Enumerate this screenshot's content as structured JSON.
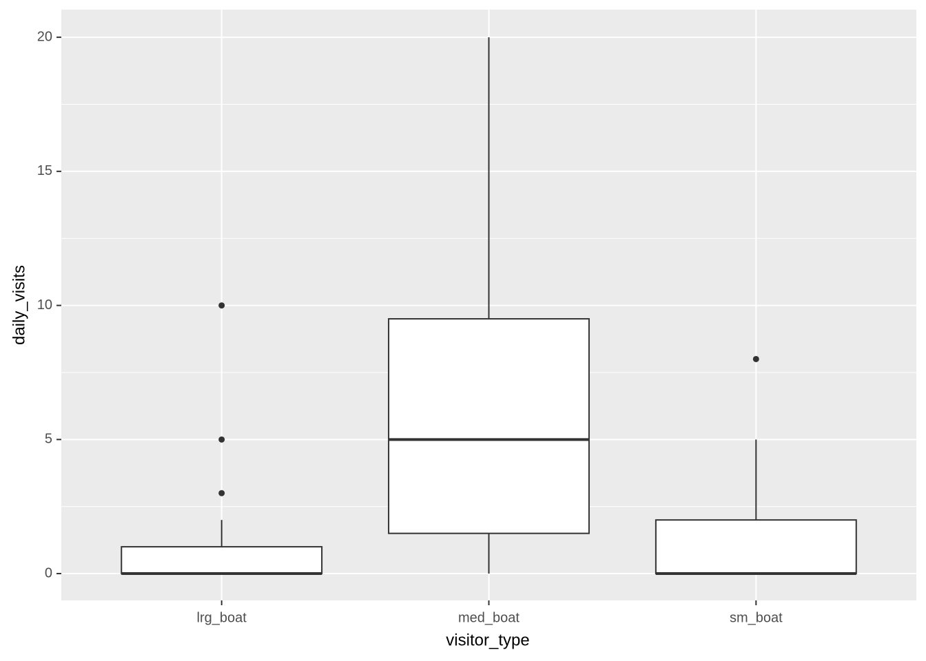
{
  "chart_data": {
    "type": "boxplot",
    "x_label": "visitor_type",
    "y_label": "daily_visits",
    "categories": [
      "lrg_boat",
      "med_boat",
      "sm_boat"
    ],
    "boxes": [
      {
        "whisker_low": 0,
        "q1": 0,
        "median": 0,
        "q3": 1,
        "whisker_high": 2,
        "outliers": [
          3,
          5,
          10
        ]
      },
      {
        "whisker_low": 0,
        "q1": 1.5,
        "median": 5,
        "q3": 9.5,
        "whisker_high": 20,
        "outliers": []
      },
      {
        "whisker_low": 0,
        "q1": 0,
        "median": 0,
        "q3": 2,
        "whisker_high": 5,
        "outliers": [
          8
        ]
      }
    ],
    "box_fill": "#ffffff",
    "box_stroke": "#333333",
    "ylim": [
      -1,
      21.03
    ],
    "yticks": [
      0,
      5,
      10,
      15,
      20
    ],
    "minor_gridlines": [
      2.5,
      7.5,
      12.5,
      17.5
    ],
    "grid": true
  }
}
